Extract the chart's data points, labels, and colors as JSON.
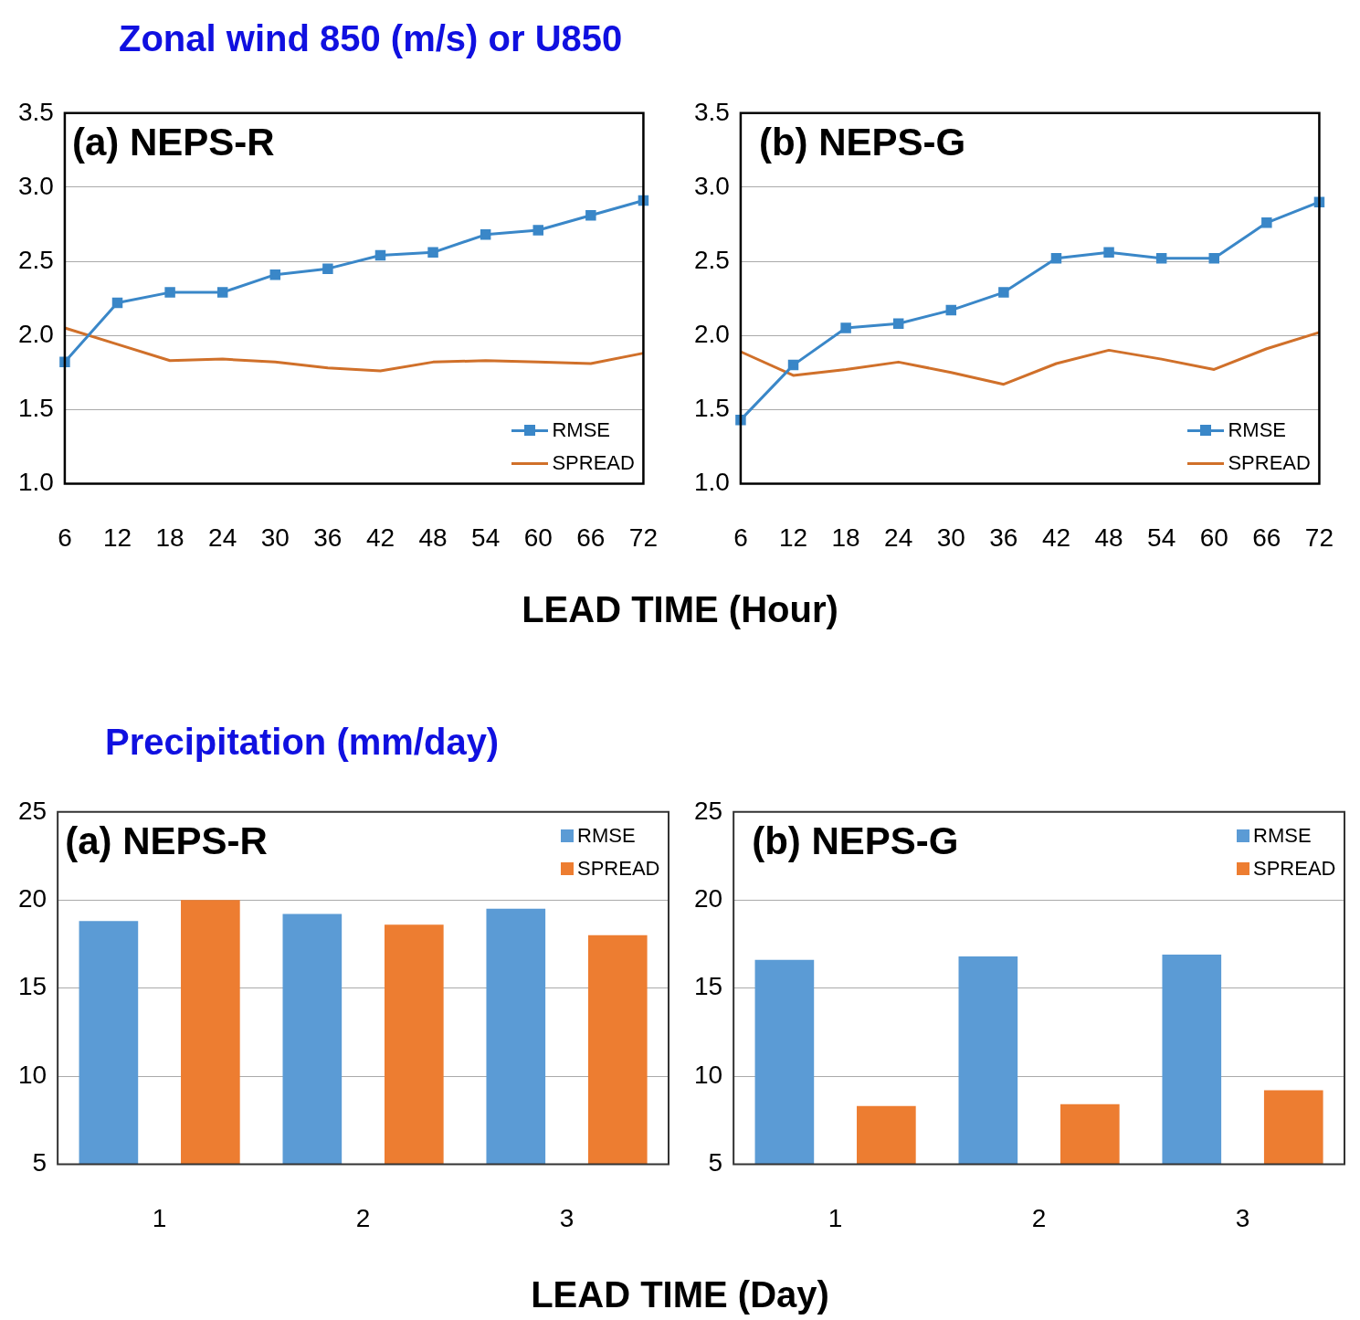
{
  "chart_data": [
    {
      "type": "line",
      "title": "Zonal wind 850 (m/s) or U850",
      "xlabel": "LEAD TIME (Hour)",
      "annotations": [
        "(a) NEPS-R"
      ],
      "categories": [
        "6",
        "12",
        "18",
        "24",
        "30",
        "36",
        "42",
        "48",
        "54",
        "60",
        "66",
        "72"
      ],
      "series": [
        {
          "name": "RMSE",
          "color": "#3a87c8",
          "marker": "square",
          "values": [
            1.82,
            2.22,
            2.29,
            2.29,
            2.41,
            2.45,
            2.54,
            2.56,
            2.68,
            2.71,
            2.81,
            2.91
          ]
        },
        {
          "name": "SPREAD",
          "color": "#d0702a",
          "marker": "none",
          "values": [
            2.05,
            1.94,
            1.83,
            1.84,
            1.82,
            1.78,
            1.76,
            1.82,
            1.83,
            1.82,
            1.81,
            1.88
          ]
        }
      ],
      "ylim": [
        1.0,
        3.5
      ],
      "yticks": [
        {
          "value": 1.0,
          "label": "1.0"
        },
        {
          "value": 1.5,
          "label": "1.5"
        },
        {
          "value": 2.0,
          "label": "2.0"
        },
        {
          "value": 2.5,
          "label": "2.5"
        },
        {
          "value": 3.0,
          "label": "3.0"
        },
        {
          "value": 3.5,
          "label": "3.5"
        }
      ],
      "grid": "y",
      "legend": "bottom right"
    },
    {
      "type": "line",
      "annotations": [
        "(b) NEPS-G"
      ],
      "categories": [
        "6",
        "12",
        "18",
        "24",
        "30",
        "36",
        "42",
        "48",
        "54",
        "60",
        "66",
        "72"
      ],
      "series": [
        {
          "name": "RMSE",
          "color": "#3a87c8",
          "marker": "square",
          "values": [
            1.43,
            1.8,
            2.05,
            2.08,
            2.17,
            2.29,
            2.52,
            2.56,
            2.52,
            2.52,
            2.76,
            2.9
          ]
        },
        {
          "name": "SPREAD",
          "color": "#d0702a",
          "marker": "none",
          "values": [
            1.89,
            1.73,
            1.77,
            1.82,
            1.75,
            1.67,
            1.81,
            1.9,
            1.84,
            1.77,
            1.91,
            2.02
          ]
        }
      ],
      "ylim": [
        1.0,
        3.5
      ],
      "yticks": [
        {
          "value": 1.0,
          "label": "1.0"
        },
        {
          "value": 1.5,
          "label": "1.5"
        },
        {
          "value": 2.0,
          "label": "2.0"
        },
        {
          "value": 2.5,
          "label": "2.5"
        },
        {
          "value": 3.0,
          "label": "3.0"
        },
        {
          "value": 3.5,
          "label": "3.5"
        }
      ],
      "grid": "y",
      "legend": "bottom right"
    },
    {
      "type": "bar",
      "title": "Precipitation (mm/day)",
      "xlabel": "LEAD TIME (Day)",
      "annotations": [
        "(a) NEPS-R"
      ],
      "categories": [
        "1",
        "2",
        "3"
      ],
      "series": [
        {
          "name": "RMSE",
          "color": "#5b9bd5",
          "values": [
            18.8,
            19.2,
            19.5
          ]
        },
        {
          "name": "SPREAD",
          "color": "#ed7d31",
          "values": [
            20.0,
            18.6,
            18.0
          ]
        }
      ],
      "ylim": [
        5,
        25
      ],
      "yticks": [
        5,
        10,
        15,
        20,
        25
      ],
      "grid": "y",
      "legend": "top right"
    },
    {
      "type": "bar",
      "annotations": [
        "(b) NEPS-G"
      ],
      "categories": [
        "1",
        "2",
        "3"
      ],
      "series": [
        {
          "name": "RMSE",
          "color": "#5b9bd5",
          "values": [
            16.6,
            16.8,
            16.9
          ]
        },
        {
          "name": "SPREAD",
          "color": "#ed7d31",
          "values": [
            8.3,
            8.4,
            9.2
          ]
        }
      ],
      "ylim": [
        5,
        25
      ],
      "yticks": [
        5,
        10,
        15,
        20,
        25
      ],
      "grid": "y",
      "legend": "top right"
    }
  ]
}
